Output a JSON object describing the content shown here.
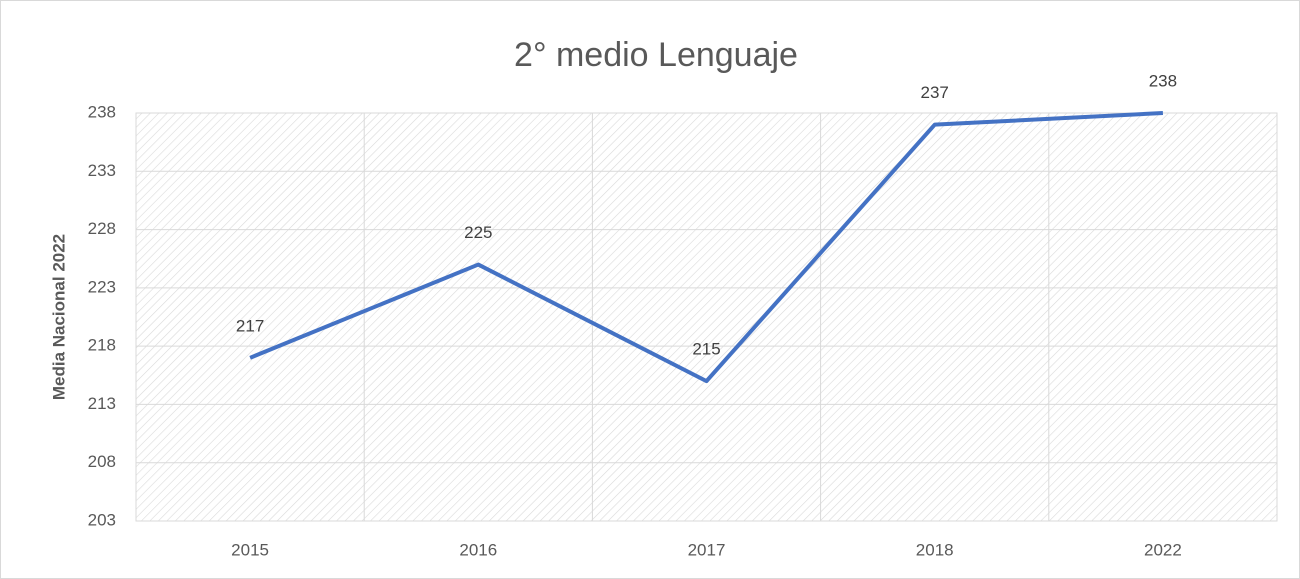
{
  "chart_data": {
    "type": "line",
    "title": "2° medio Lenguaje",
    "y_label": "Media Nacional 2022",
    "categories": [
      "2015",
      "2016",
      "2017",
      "2018",
      "2022"
    ],
    "values": [
      217,
      225,
      215,
      237,
      238
    ],
    "color": "#4472c4",
    "ylim": [
      203,
      238
    ],
    "yticks": [
      203,
      208,
      213,
      218,
      223,
      228,
      233,
      238
    ],
    "grid": true
  }
}
